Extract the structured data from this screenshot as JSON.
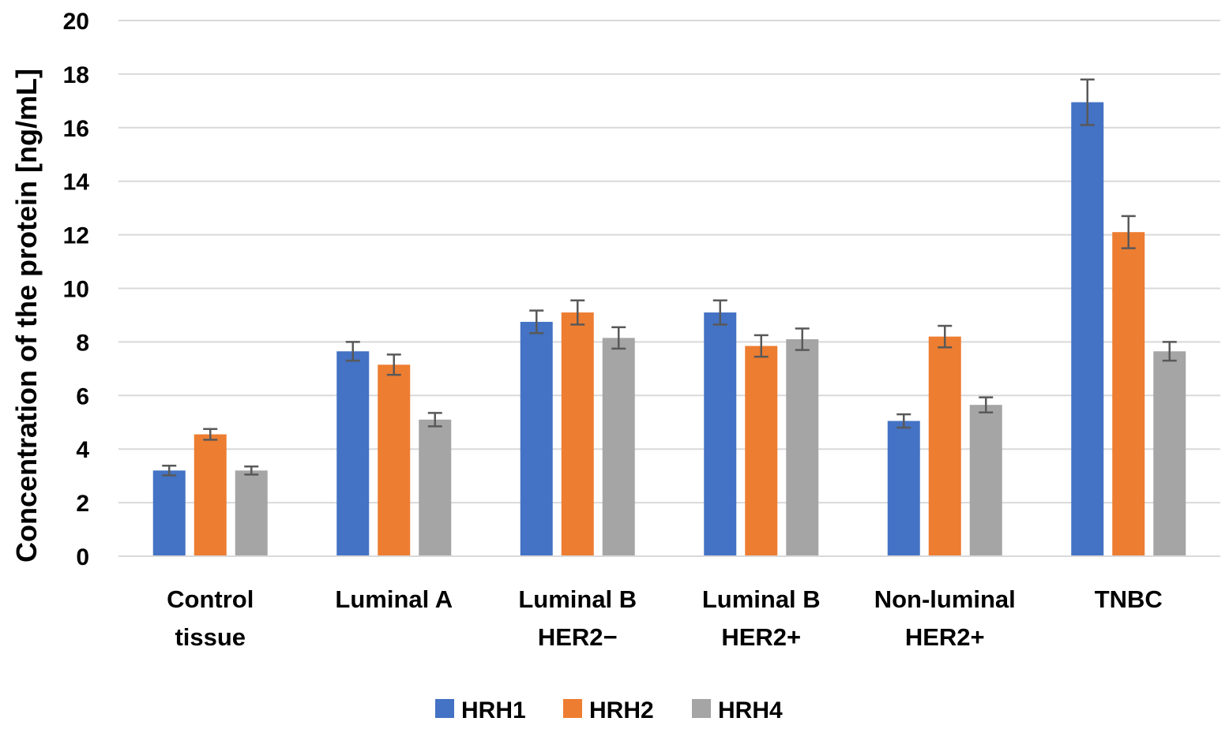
{
  "chart_data": {
    "type": "bar",
    "title": "",
    "xlabel": "",
    "ylabel": "Concentration of the protein  [ng/mL]",
    "ylim": [
      0,
      20
    ],
    "yticks": [
      0,
      2,
      4,
      6,
      8,
      10,
      12,
      14,
      16,
      18,
      20
    ],
    "grid": true,
    "legend_position": "bottom",
    "categories": [
      [
        "Control",
        "tissue"
      ],
      [
        "Luminal A"
      ],
      [
        "Luminal B",
        "HER2−"
      ],
      [
        "Luminal B",
        "HER2+"
      ],
      [
        "Non-luminal",
        "HER2+"
      ],
      [
        "TNBC"
      ]
    ],
    "series": [
      {
        "name": "HRH1",
        "color": "#4472C4",
        "values": [
          3.2,
          7.65,
          8.75,
          9.1,
          5.05,
          16.95
        ],
        "errors": [
          0.18,
          0.35,
          0.42,
          0.45,
          0.25,
          0.85
        ]
      },
      {
        "name": "HRH2",
        "color": "#ED7D31",
        "values": [
          4.55,
          7.15,
          9.1,
          7.85,
          8.2,
          12.1
        ],
        "errors": [
          0.2,
          0.38,
          0.45,
          0.4,
          0.4,
          0.6
        ]
      },
      {
        "name": "HRH4",
        "color": "#A5A5A5",
        "values": [
          3.2,
          5.1,
          8.15,
          8.1,
          5.65,
          7.65
        ],
        "errors": [
          0.15,
          0.25,
          0.4,
          0.4,
          0.28,
          0.35
        ]
      }
    ]
  }
}
